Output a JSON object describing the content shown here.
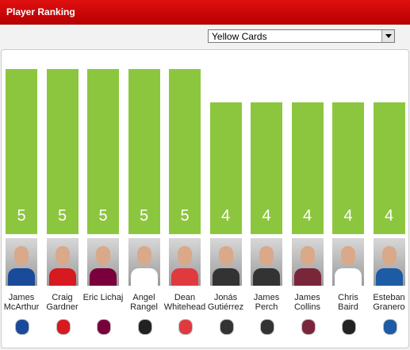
{
  "chart_data": {
    "type": "bar",
    "title": "Player Ranking",
    "selector": "Yellow Cards",
    "categories": [
      "James McArthur",
      "Craig Gardner",
      "Eric Lichaj",
      "Angel Rangel",
      "Dean Whitehead",
      "Jonás Gutiérrez",
      "James Perch",
      "James Collins",
      "Chris Baird",
      "Esteban Granero"
    ],
    "values": [
      5,
      5,
      5,
      5,
      5,
      4,
      4,
      4,
      4,
      4
    ],
    "color": "#8cc63f"
  }
}
